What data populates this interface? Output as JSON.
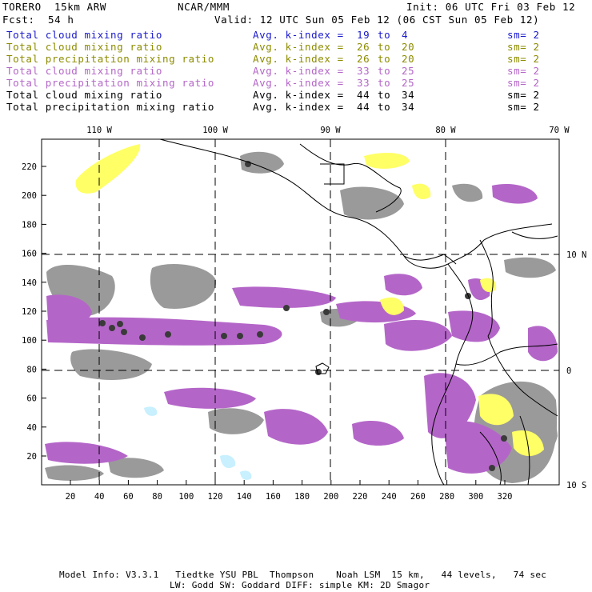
{
  "header": {
    "model": "TORERO  15km ARW",
    "org": "NCAR/MMM",
    "init": "Init: 06 UTC Fri 03 Feb 12",
    "fcst_label": "Fcst:",
    "fcst_value": "54 h",
    "valid": "Valid: 12 UTC Sun 05 Feb 12 (06 CST Sun 05 Feb 12)"
  },
  "legend": [
    {
      "field": "Total cloud mixing ratio",
      "kindex": "Avg. k-index =",
      "from": "19",
      "to_word": "to",
      "to": "4",
      "sm": "sm= 2",
      "color": "#1a1acc"
    },
    {
      "field": "Total cloud mixing ratio",
      "kindex": "Avg. k-index =",
      "from": "26",
      "to_word": "to",
      "to": "20",
      "sm": "sm= 2",
      "color": "#8c8c00"
    },
    {
      "field": "Total precipitation mixing ratio",
      "kindex": "Avg. k-index =",
      "from": "26",
      "to_word": "to",
      "to": "20",
      "sm": "sm= 2",
      "color": "#8c8c00"
    },
    {
      "field": "Total cloud mixing ratio",
      "kindex": "Avg. k-index =",
      "from": "33",
      "to_word": "to",
      "to": "25",
      "sm": "sm= 2",
      "color": "#b466c8"
    },
    {
      "field": "Total precipitation mixing ratio",
      "kindex": "Avg. k-index =",
      "from": "33",
      "to_word": "to",
      "to": "25",
      "sm": "sm= 2",
      "color": "#b466c8"
    },
    {
      "field": "Total cloud mixing ratio",
      "kindex": "Avg. k-index =",
      "from": "44",
      "to_word": "to",
      "to": "34",
      "sm": "sm= 2",
      "color": "#000000"
    },
    {
      "field": "Total precipitation mixing ratio",
      "kindex": "Avg. k-index =",
      "from": "44",
      "to_word": "to",
      "to": "34",
      "sm": "sm= 2",
      "color": "#000000"
    }
  ],
  "map": {
    "lon_labels": [
      "110 W",
      "100 W",
      "90 W",
      "80 W",
      "70 W"
    ],
    "lat_labels": [
      "10 N",
      "0",
      "10 S"
    ],
    "x_ticks": [
      "20",
      "40",
      "60",
      "80",
      "100",
      "120",
      "140",
      "160",
      "180",
      "200",
      "220",
      "240",
      "260",
      "280",
      "300",
      "320"
    ],
    "y_ticks": [
      "20",
      "40",
      "60",
      "80",
      "100",
      "120",
      "140",
      "160",
      "180",
      "200",
      "220"
    ],
    "colors": {
      "gray": "#9a9a9a",
      "dark_core": "#3a3a3a",
      "purple": "#b466c8",
      "yellow": "#ffff66",
      "light_blue": "#c8f0ff"
    }
  },
  "footer": {
    "line1": "Model Info: V3.3.1   Tiedtke YSU PBL  Thompson    Noah LSM  15 km,   44 levels,   74 sec",
    "line2": "LW: Godd SW: Goddard DIFF: simple KM: 2D Smagor"
  }
}
